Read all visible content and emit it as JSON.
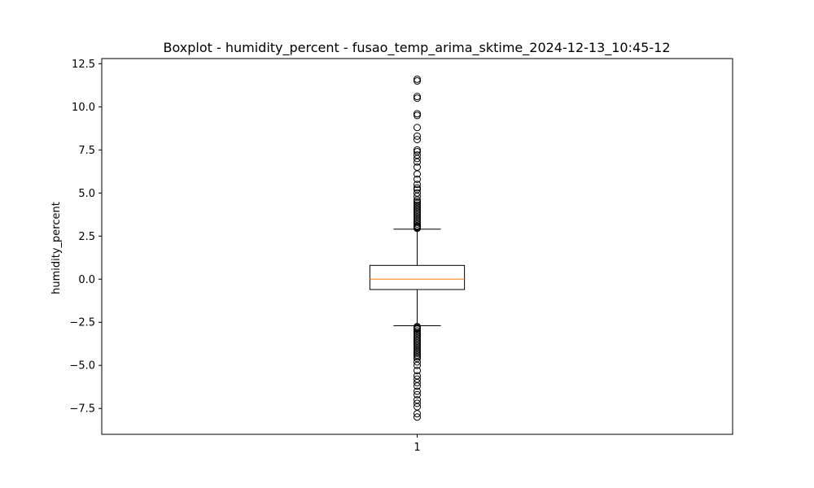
{
  "chart_data": {
    "type": "boxplot",
    "title": "Boxplot - humidity_percent - fusao_temp_arima_sktime_2024-12-13_10:45-12",
    "xlabel": "",
    "ylabel": "humidity_percent",
    "categories": [
      "1"
    ],
    "ylim": [
      -9.0,
      12.8
    ],
    "y_ticks": [
      12.5,
      10.0,
      7.5,
      5.0,
      2.5,
      0.0,
      -2.5,
      -5.0,
      -7.5
    ],
    "y_tick_labels": [
      "12.5",
      "10.0",
      "7.5",
      "5.0",
      "2.5",
      "0.0",
      "−2.5",
      "−5.0",
      "−7.5"
    ],
    "grid": false,
    "boxes": [
      {
        "category": "1",
        "whisker_low": -2.7,
        "q1": -0.6,
        "median": 0.0,
        "q3": 0.8,
        "whisker_high": 2.9,
        "outliers_high": [
          2.95,
          3.0,
          3.05,
          3.1,
          3.2,
          3.3,
          3.4,
          3.5,
          3.6,
          3.7,
          3.8,
          3.9,
          4.0,
          4.1,
          4.2,
          4.3,
          4.4,
          4.5,
          4.6,
          4.8,
          5.0,
          5.2,
          5.3,
          5.5,
          5.8,
          6.1,
          6.5,
          6.8,
          7.0,
          7.2,
          7.4,
          7.5,
          8.1,
          8.3,
          8.8,
          9.5,
          9.6,
          10.5,
          10.6,
          11.5,
          11.6
        ],
        "outliers_low": [
          -2.75,
          -2.8,
          -2.85,
          -2.9,
          -3.0,
          -3.1,
          -3.2,
          -3.3,
          -3.4,
          -3.5,
          -3.6,
          -3.7,
          -3.8,
          -3.9,
          -4.0,
          -4.1,
          -4.2,
          -4.3,
          -4.4,
          -4.5,
          -4.6,
          -4.8,
          -5.0,
          -5.3,
          -5.6,
          -5.8,
          -6.0,
          -6.2,
          -6.5,
          -6.7,
          -7.0,
          -7.2,
          -7.4,
          -7.8,
          -8.0
        ]
      }
    ],
    "colors": {
      "box": "#000000",
      "median": "#ff7f0e",
      "outlier": "#000000"
    }
  }
}
